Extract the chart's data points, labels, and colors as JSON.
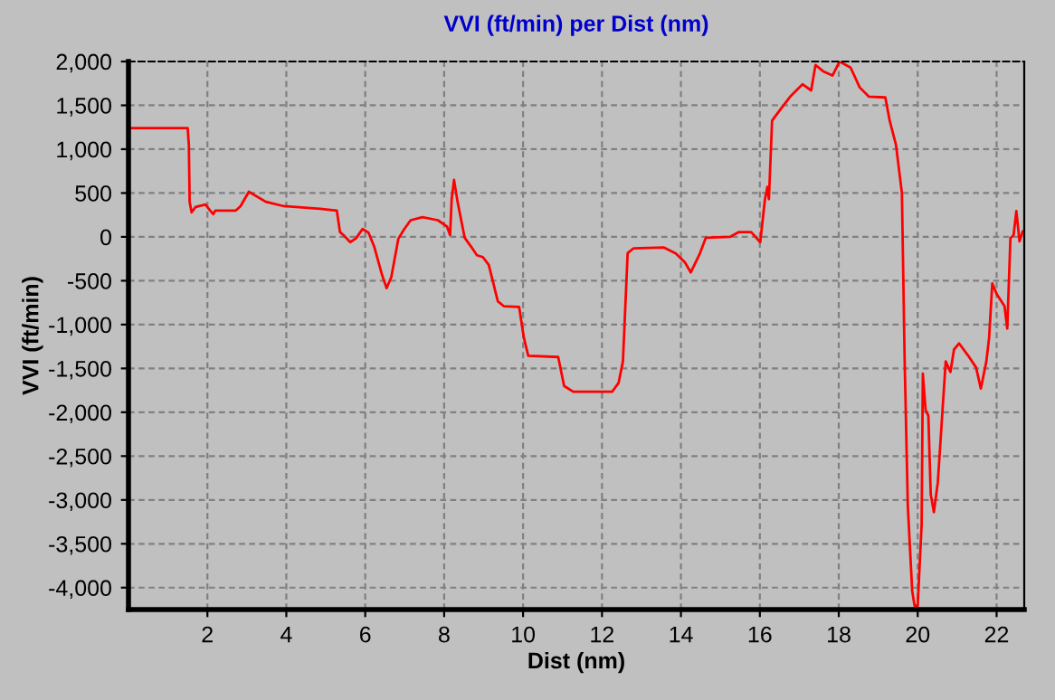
{
  "chart_data": {
    "type": "line",
    "title": "VVI (ft/min) per Dist (nm)",
    "xlabel": "Dist (nm)",
    "ylabel": "VVI (ft/min)",
    "xlim": [
      0,
      22.7
    ],
    "xticks": [
      2,
      4,
      6,
      8,
      10,
      12,
      14,
      16,
      18,
      20,
      22
    ],
    "ylim": [
      -4250,
      2000
    ],
    "yticks": [
      {
        "value": 2000,
        "label": "2,000"
      },
      {
        "value": 1500,
        "label": "1,500"
      },
      {
        "value": 1000,
        "label": "1,000"
      },
      {
        "value": 500,
        "label": "500"
      },
      {
        "value": 0,
        "label": "0"
      },
      {
        "value": -500,
        "label": "-500"
      },
      {
        "value": -1000,
        "label": "-1,000"
      },
      {
        "value": -1500,
        "label": "-1,500"
      },
      {
        "value": -2000,
        "label": "-2,000"
      },
      {
        "value": -2500,
        "label": "-2,500"
      },
      {
        "value": -3000,
        "label": "-3,000"
      },
      {
        "value": -3500,
        "label": "-3,500"
      },
      {
        "value": -4000,
        "label": "-4,000"
      }
    ],
    "grid": true,
    "legend": false,
    "marker": "none",
    "line_style": "solid",
    "series": [
      {
        "color": "#ff0000",
        "x": [
          0,
          1.5,
          1.53,
          1.55,
          1.6,
          1.7,
          1.95,
          2.07,
          2.15,
          2.2,
          2.72,
          2.84,
          3.05,
          3.48,
          3.94,
          4.86,
          5.28,
          5.36,
          5.45,
          5.62,
          5.77,
          5.93,
          6.08,
          6.23,
          6.42,
          6.54,
          6.66,
          6.84,
          6.99,
          7.15,
          7.45,
          7.84,
          8.07,
          8.15,
          8.19,
          8.25,
          8.34,
          8.52,
          8.68,
          8.83,
          8.98,
          9.13,
          9.36,
          9.51,
          9.9,
          10.02,
          10.13,
          10.89,
          11.04,
          11.27,
          12.26,
          12.42,
          12.53,
          12.65,
          12.8,
          13.56,
          13.87,
          14.1,
          14.25,
          14.48,
          14.63,
          15.24,
          15.47,
          15.78,
          16.01,
          16.13,
          16.19,
          16.23,
          16.31,
          16.54,
          16.77,
          17.08,
          17.3,
          17.41,
          17.6,
          17.84,
          18.02,
          18.3,
          18.53,
          18.76,
          19.18,
          19.29,
          19.45,
          19.6,
          19.67,
          19.75,
          19.86,
          19.92,
          20.0,
          20.1,
          20.13,
          20.2,
          20.27,
          20.33,
          20.41,
          20.51,
          20.62,
          20.71,
          20.83,
          20.92,
          21.05,
          21.28,
          21.48,
          21.6,
          21.74,
          21.81,
          21.89,
          22.0,
          22.2,
          22.27,
          22.35,
          22.43,
          22.5,
          22.58,
          22.66
        ],
        "values": [
          1240,
          1240,
          1050,
          400,
          280,
          340,
          370,
          300,
          260,
          300,
          300,
          350,
          515,
          400,
          350,
          320,
          300,
          55,
          20,
          -60,
          -15,
          90,
          50,
          -115,
          -425,
          -585,
          -460,
          -20,
          90,
          190,
          225,
          190,
          120,
          20,
          430,
          650,
          400,
          -10,
          -110,
          -210,
          -230,
          -320,
          -735,
          -790,
          -800,
          -1150,
          -1355,
          -1370,
          -1700,
          -1765,
          -1765,
          -1665,
          -1420,
          -185,
          -130,
          -120,
          -190,
          -290,
          -405,
          -190,
          -10,
          0,
          55,
          55,
          -60,
          430,
          570,
          430,
          1325,
          1465,
          1600,
          1740,
          1670,
          1960,
          1890,
          1840,
          2000,
          1930,
          1705,
          1600,
          1590,
          1325,
          1050,
          500,
          -1420,
          -3070,
          -4035,
          -4205,
          -4205,
          -3280,
          -1560,
          -1975,
          -2040,
          -2935,
          -3140,
          -2800,
          -2040,
          -1420,
          -1540,
          -1285,
          -1215,
          -1355,
          -1490,
          -1730,
          -1420,
          -1150,
          -530,
          -650,
          -790,
          -1045,
          -15,
          20,
          295,
          -50,
          60
        ]
      }
    ]
  }
}
